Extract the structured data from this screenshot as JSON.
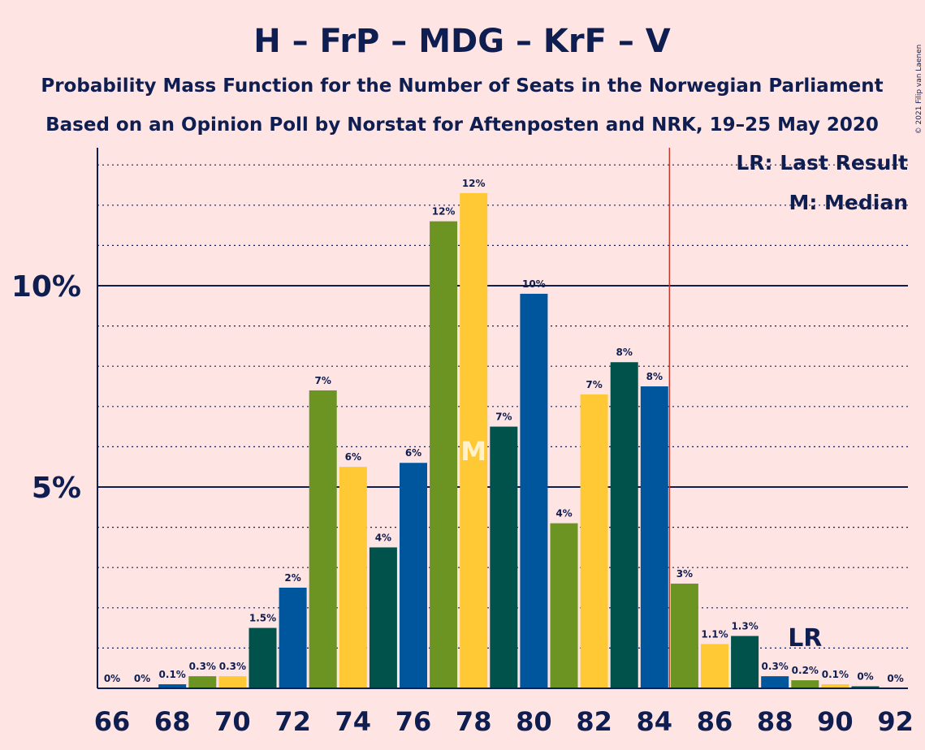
{
  "chart_data": {
    "type": "bar",
    "title": "H – FrP – MDG – KrF – V",
    "subtitle_1": "Probability Mass Function for the Number of Seats in the Norwegian Parliament",
    "subtitle_2": "Based on an Opinion Poll by Norstat for Aftenposten and NRK, 19–25 May 2020",
    "copyright": "© 2021 Filip van Laenen",
    "legend_lr": "LR: Last Result",
    "legend_m": "M: Median",
    "x": [
      66,
      67,
      68,
      69,
      70,
      71,
      72,
      73,
      74,
      75,
      76,
      77,
      78,
      79,
      80,
      81,
      82,
      83,
      84,
      85,
      86,
      87,
      88,
      89,
      90,
      91,
      92
    ],
    "values": [
      0,
      0,
      0.1,
      0.3,
      0.3,
      1.5,
      2.5,
      7.4,
      5.5,
      3.5,
      5.6,
      11.6,
      12.3,
      6.5,
      9.8,
      4.1,
      7.3,
      8.1,
      7.5,
      2.6,
      1.1,
      1.3,
      0.3,
      0.2,
      0.1,
      0.05,
      0
    ],
    "labels": [
      "0%",
      "0%",
      "0.1%",
      "0.3%",
      "0.3%",
      "1.5%",
      "2%",
      "7%",
      "6%",
      "4%",
      "6%",
      "12%",
      "12%",
      "7%",
      "10%",
      "4%",
      "7%",
      "8%",
      "8%",
      "3%",
      "1.1%",
      "1.3%",
      "0.3%",
      "0.2%",
      "0.1%",
      "0%",
      "0%"
    ],
    "x_ticks": [
      "66",
      "68",
      "70",
      "72",
      "74",
      "76",
      "78",
      "80",
      "82",
      "84",
      "86",
      "88",
      "90",
      "92"
    ],
    "y_ticks": [
      {
        "value": 5,
        "label": "5%"
      },
      {
        "value": 10,
        "label": "10%"
      }
    ],
    "ylim": [
      0,
      13.5
    ],
    "majority_line_x": 84.5,
    "median_x": 78,
    "median_marker": "M",
    "last_result_x": 89,
    "last_result_marker": "LR",
    "colors": {
      "background": "#ffe4e4",
      "text": "#0f1e50",
      "majority_line": "#c0392b",
      "party_cycle": [
        "#ffc936",
        "#00524a",
        "#00569d",
        "#6b9423"
      ]
    }
  }
}
